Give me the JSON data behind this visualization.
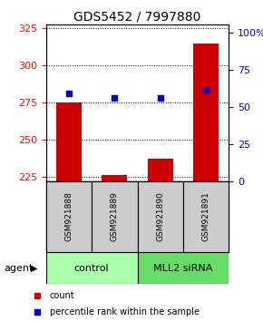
{
  "title": "GDS5452 / 7997880",
  "samples": [
    "GSM921888",
    "GSM921889",
    "GSM921890",
    "GSM921891"
  ],
  "count_values": [
    275,
    226,
    237,
    315
  ],
  "count_baseline": 222,
  "percentile_values": [
    281,
    278,
    278,
    284
  ],
  "ylim_left": [
    222,
    328
  ],
  "yticks_left": [
    225,
    250,
    275,
    300,
    325
  ],
  "ylim_right": [
    0,
    106
  ],
  "yticks_right": [
    0,
    25,
    50,
    75,
    100
  ],
  "ytick_labels_right": [
    "0",
    "25",
    "50",
    "75",
    "100%"
  ],
  "bar_color": "#cc0000",
  "marker_color": "#0000cc",
  "groups": [
    {
      "label": "control",
      "samples": [
        0,
        1
      ],
      "color": "#aaffaa"
    },
    {
      "label": "MLL2 siRNA",
      "samples": [
        2,
        3
      ],
      "color": "#66dd66"
    }
  ],
  "sample_box_color": "#cccccc",
  "agent_label": "agent",
  "legend_count": "count",
  "legend_percentile": "percentile rank within the sample",
  "title_fontsize": 10,
  "tick_fontsize": 8,
  "label_fontsize": 8,
  "sample_fontsize": 6.5,
  "group_fontsize": 8
}
